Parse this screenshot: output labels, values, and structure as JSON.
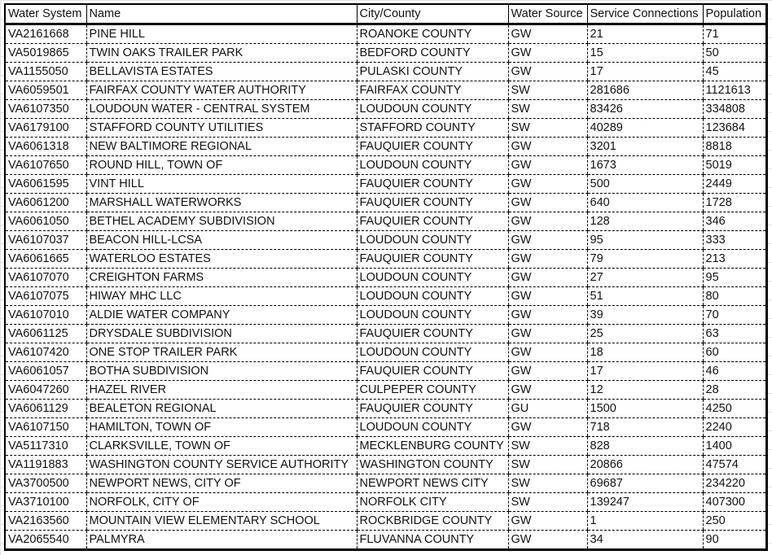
{
  "columns": [
    "Water System",
    "Name",
    "City/County",
    "Water Source",
    "Service Connections",
    "Population"
  ],
  "rows": [
    [
      "VA2161668",
      "PINE HILL",
      "ROANOKE COUNTY",
      "GW",
      "21",
      "71"
    ],
    [
      "VA5019865",
      "TWIN OAKS TRAILER PARK",
      "BEDFORD COUNTY",
      "GW",
      "15",
      "50"
    ],
    [
      "VA1155050",
      "BELLAVISTA ESTATES",
      "PULASKI COUNTY",
      "GW",
      "17",
      "45"
    ],
    [
      "VA6059501",
      "FAIRFAX COUNTY WATER AUTHORITY",
      "FAIRFAX COUNTY",
      "SW",
      "281686",
      "1121613"
    ],
    [
      "VA6107350",
      "LOUDOUN WATER - CENTRAL SYSTEM",
      "LOUDOUN COUNTY",
      "SW",
      "83426",
      "334808"
    ],
    [
      "VA6179100",
      "STAFFORD COUNTY UTILITIES",
      "STAFFORD COUNTY",
      "SW",
      "40289",
      "123684"
    ],
    [
      "VA6061318",
      "NEW BALTIMORE REGIONAL",
      "FAUQUIER COUNTY",
      "GW",
      "3201",
      "8818"
    ],
    [
      "VA6107650",
      "ROUND HILL, TOWN OF",
      "LOUDOUN COUNTY",
      "GW",
      "1673",
      "5019"
    ],
    [
      "VA6061595",
      "VINT HILL",
      "FAUQUIER COUNTY",
      "GW",
      "500",
      "2449"
    ],
    [
      "VA6061200",
      "MARSHALL WATERWORKS",
      "FAUQUIER COUNTY",
      "GW",
      "640",
      "1728"
    ],
    [
      "VA6061050",
      "BETHEL ACADEMY SUBDIVISION",
      "FAUQUIER COUNTY",
      "GW",
      "128",
      "346"
    ],
    [
      "VA6107037",
      "BEACON HILL-LCSA",
      "LOUDOUN COUNTY",
      "GW",
      "95",
      "333"
    ],
    [
      "VA6061665",
      "WATERLOO ESTATES",
      "FAUQUIER COUNTY",
      "GW",
      "79",
      "213"
    ],
    [
      "VA6107070",
      "CREIGHTON FARMS",
      "LOUDOUN COUNTY",
      "GW",
      "27",
      "95"
    ],
    [
      "VA6107075",
      "HIWAY MHC LLC",
      "LOUDOUN COUNTY",
      "GW",
      "51",
      "80"
    ],
    [
      "VA6107010",
      "ALDIE WATER COMPANY",
      "LOUDOUN COUNTY",
      "GW",
      "39",
      "70"
    ],
    [
      "VA6061125",
      "DRYSDALE SUBDIVISION",
      "FAUQUIER COUNTY",
      "GW",
      "25",
      "63"
    ],
    [
      "VA6107420",
      "ONE STOP TRAILER PARK",
      "LOUDOUN COUNTY",
      "GW",
      "18",
      "60"
    ],
    [
      "VA6061057",
      "BOTHA SUBDIVISION",
      "FAUQUIER COUNTY",
      "GW",
      "17",
      "46"
    ],
    [
      "VA6047260",
      "HAZEL RIVER",
      "CULPEPER COUNTY",
      "GW",
      "12",
      "28"
    ],
    [
      "VA6061129",
      "BEALETON REGIONAL",
      "FAUQUIER COUNTY",
      "GU",
      "1500",
      "4250"
    ],
    [
      "VA6107150",
      "HAMILTON, TOWN OF",
      "LOUDOUN COUNTY",
      "GW",
      "718",
      "2240"
    ],
    [
      "VA5117310",
      "CLARKSVILLE, TOWN OF",
      "MECKLENBURG COUNTY",
      "SW",
      "828",
      "1400"
    ],
    [
      "VA1191883",
      "WASHINGTON COUNTY SERVICE AUTHORITY",
      "WASHINGTON COUNTY",
      "SW",
      "20866",
      "47574"
    ],
    [
      "VA3700500",
      "NEWPORT NEWS, CITY OF",
      "NEWPORT NEWS CITY",
      "SW",
      "69687",
      "234220"
    ],
    [
      "VA3710100",
      "NORFOLK, CITY OF",
      "NORFOLK CITY",
      "SW",
      "139247",
      "407300"
    ],
    [
      "VA2163560",
      "MOUNTAIN VIEW ELEMENTARY SCHOOL",
      "ROCKBRIDGE COUNTY",
      "GW",
      "1",
      "250"
    ],
    [
      "VA2065540",
      "PALMYRA",
      "FLUVANNA COUNTY",
      "GW",
      "34",
      "90"
    ]
  ]
}
